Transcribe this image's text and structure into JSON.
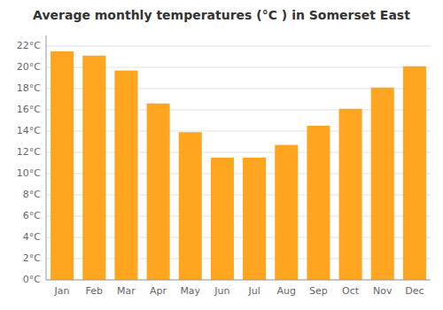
{
  "chart_data": {
    "type": "bar",
    "title": "Average monthly temperatures (°C ) in Somerset East",
    "categories": [
      "Jan",
      "Feb",
      "Mar",
      "Apr",
      "May",
      "Jun",
      "Jul",
      "Aug",
      "Sep",
      "Oct",
      "Nov",
      "Dec"
    ],
    "values": [
      21.5,
      21.1,
      19.7,
      16.6,
      13.9,
      11.5,
      11.5,
      12.7,
      14.5,
      16.1,
      18.1,
      20.1
    ],
    "color": "#FFA520",
    "ylim": [
      0,
      23
    ],
    "yticks": [
      {
        "value": 0,
        "label": "0°C"
      },
      {
        "value": 2,
        "label": "2°C"
      },
      {
        "value": 4,
        "label": "4°C"
      },
      {
        "value": 6,
        "label": "6°C"
      },
      {
        "value": 8,
        "label": "8°C"
      },
      {
        "value": 10,
        "label": "10°C"
      },
      {
        "value": 12,
        "label": "12°C"
      },
      {
        "value": 14,
        "label": "14°C"
      },
      {
        "value": 16,
        "label": "16°C"
      },
      {
        "value": 18,
        "label": "18°C"
      },
      {
        "value": 20,
        "label": "20°C"
      },
      {
        "value": 22,
        "label": "22°C"
      }
    ],
    "grid": true
  }
}
